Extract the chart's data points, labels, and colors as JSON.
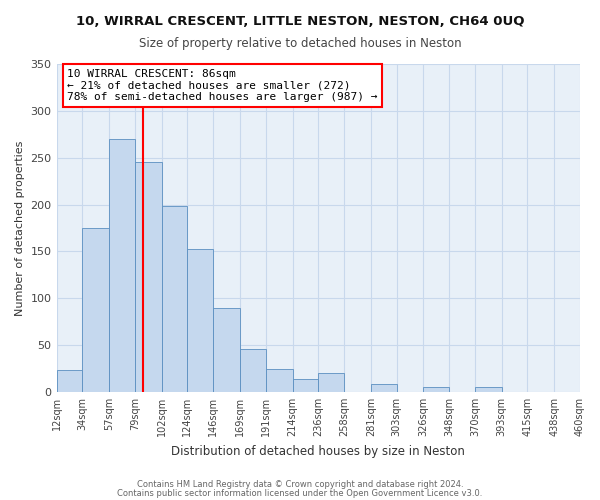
{
  "title": "10, WIRRAL CRESCENT, LITTLE NESTON, NESTON, CH64 0UQ",
  "subtitle": "Size of property relative to detached houses in Neston",
  "xlabel": "Distribution of detached houses by size in Neston",
  "ylabel": "Number of detached properties",
  "bar_labels": [
    "12sqm",
    "34sqm",
    "57sqm",
    "79sqm",
    "102sqm",
    "124sqm",
    "146sqm",
    "169sqm",
    "191sqm",
    "214sqm",
    "236sqm",
    "258sqm",
    "281sqm",
    "303sqm",
    "326sqm",
    "348sqm",
    "370sqm",
    "393sqm",
    "415sqm",
    "438sqm",
    "460sqm"
  ],
  "bar_values": [
    23,
    175,
    270,
    245,
    198,
    153,
    90,
    46,
    25,
    14,
    20,
    0,
    8,
    0,
    5,
    0,
    5,
    0,
    0,
    0,
    0
  ],
  "bar_color": "#c5d8ee",
  "bar_edge_color": "#5a8fc0",
  "grid_color": "#c8d8ec",
  "plot_bg_color": "#e8f0f8",
  "background_color": "#ffffff",
  "property_line_x": 86,
  "bin_edges": [
    12,
    34,
    57,
    79,
    102,
    124,
    146,
    169,
    191,
    214,
    236,
    258,
    281,
    303,
    326,
    348,
    370,
    393,
    415,
    438,
    460
  ],
  "annotation_title": "10 WIRRAL CRESCENT: 86sqm",
  "annotation_line1": "← 21% of detached houses are smaller (272)",
  "annotation_line2": "78% of semi-detached houses are larger (987) →",
  "footnote1": "Contains HM Land Registry data © Crown copyright and database right 2024.",
  "footnote2": "Contains public sector information licensed under the Open Government Licence v3.0.",
  "ylim": [
    0,
    350
  ],
  "yticks": [
    0,
    50,
    100,
    150,
    200,
    250,
    300,
    350
  ]
}
